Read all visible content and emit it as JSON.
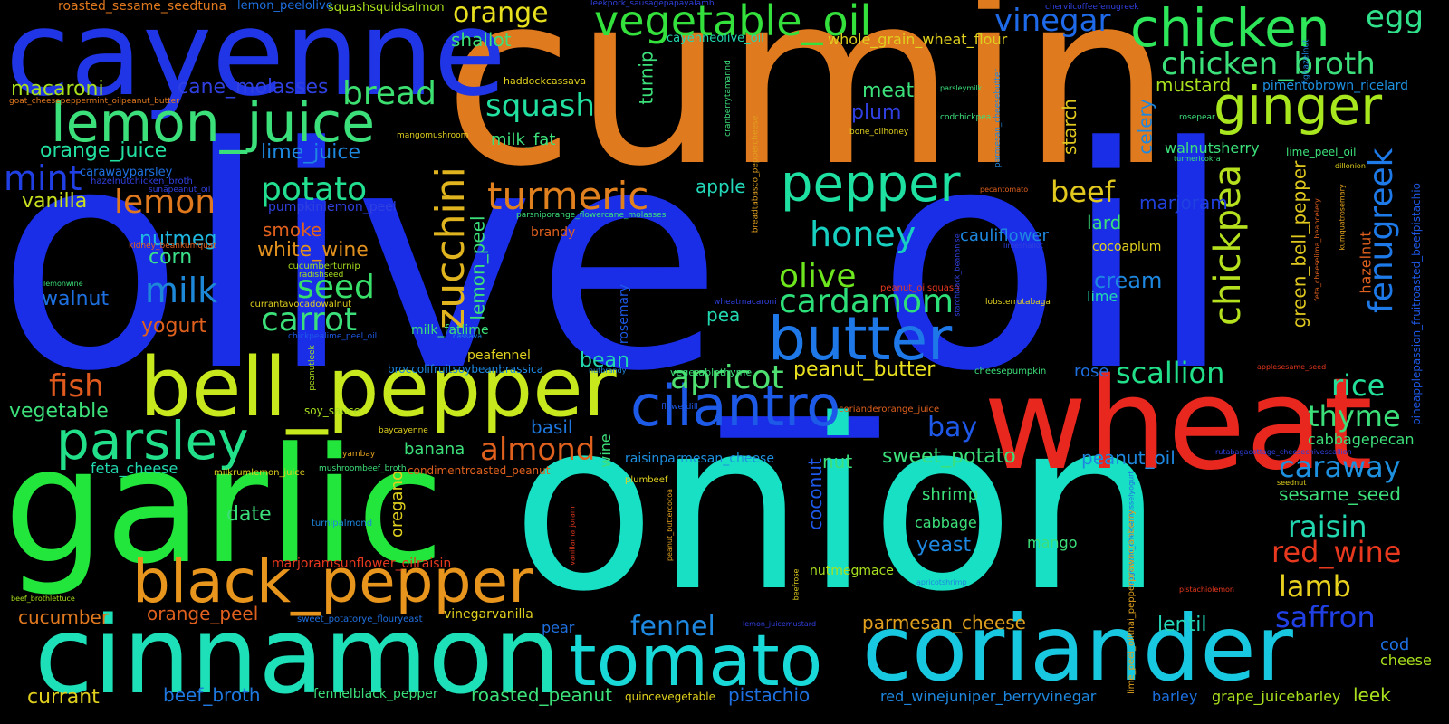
{
  "words": [
    {
      "id": "olive_oil",
      "text": "olive_oil",
      "color": "#1a2ee8"
    },
    {
      "id": "cumin",
      "text": "cumin",
      "color": "#e07a1e"
    },
    {
      "id": "onion",
      "text": "onion",
      "color": "#18e0c4"
    },
    {
      "id": "garlic",
      "text": "garlic",
      "color": "#22e63c"
    },
    {
      "id": "cayenne",
      "text": "cayenne",
      "color": "#2035e6"
    },
    {
      "id": "wheat",
      "text": "wheat",
      "color": "#e8281e"
    },
    {
      "id": "cinnamon",
      "text": "cinnamon",
      "color": "#1ee0b8"
    },
    {
      "id": "coriander",
      "text": "coriander",
      "color": "#18c8e0"
    },
    {
      "id": "tomato",
      "text": "tomato",
      "color": "#18d8d8"
    },
    {
      "id": "bell_pepper",
      "text": "bell_pepper",
      "color": "#c8e81e"
    },
    {
      "id": "lemon_juice",
      "text": "lemon_juice",
      "color": "#3ce07a"
    },
    {
      "id": "black_pepper",
      "text": "black_pepper",
      "color": "#e8951e"
    },
    {
      "id": "parsley",
      "text": "parsley",
      "color": "#22e08a"
    },
    {
      "id": "butter",
      "text": "butter",
      "color": "#1e78e8"
    },
    {
      "id": "cilantro",
      "text": "cilantro",
      "color": "#1e5ae8"
    },
    {
      "id": "chicken",
      "text": "chicken",
      "color": "#2ee65a"
    },
    {
      "id": "ginger",
      "text": "ginger",
      "color": "#a8e61e"
    },
    {
      "id": "vegetable_oil",
      "text": "vegetable_oil",
      "color": "#34e03c"
    },
    {
      "id": "pepper",
      "text": "pepper",
      "color": "#1ee0a0"
    },
    {
      "id": "turmeric",
      "text": "turmeric",
      "color": "#e0801e"
    },
    {
      "id": "chicken_broth",
      "text": "chicken_broth",
      "color": "#3ce07a"
    },
    {
      "id": "vinegar",
      "text": "vinegar",
      "color": "#1e6ae8"
    },
    {
      "id": "egg",
      "text": "egg",
      "color": "#30e08a"
    },
    {
      "id": "zucchini",
      "text": "zucchini",
      "color": "#e0b41e"
    },
    {
      "id": "chickpea",
      "text": "chickpea",
      "color": "#b4e01e"
    },
    {
      "id": "fenugreek",
      "text": "fenugreek",
      "color": "#1e7ae8"
    },
    {
      "id": "cardamom",
      "text": "cardamom",
      "color": "#2ee07a"
    },
    {
      "id": "honey",
      "text": "honey",
      "color": "#18d0c0"
    },
    {
      "id": "olive",
      "text": "olive",
      "color": "#6ee61e"
    },
    {
      "id": "apricot",
      "text": "apricot",
      "color": "#4ee070"
    },
    {
      "id": "almond",
      "text": "almond",
      "color": "#e0601e"
    },
    {
      "id": "carrot",
      "text": "carrot",
      "color": "#3ce07a"
    },
    {
      "id": "potato",
      "text": "potato",
      "color": "#22e090"
    },
    {
      "id": "seed",
      "text": "seed",
      "color": "#38e06a"
    },
    {
      "id": "milk",
      "text": "milk",
      "color": "#1e88d8"
    },
    {
      "id": "lemon",
      "text": "lemon",
      "color": "#e0781e"
    },
    {
      "id": "mint",
      "text": "mint",
      "color": "#2040e6"
    },
    {
      "id": "bread",
      "text": "bread",
      "color": "#3ce070"
    },
    {
      "id": "squash",
      "text": "squash",
      "color": "#22e0a0"
    },
    {
      "id": "orange",
      "text": "orange",
      "color": "#e8e01e"
    },
    {
      "id": "beef",
      "text": "beef",
      "color": "#e0c81e"
    },
    {
      "id": "fish",
      "text": "fish",
      "color": "#e05a1e"
    },
    {
      "id": "scallion",
      "text": "scallion",
      "color": "#22e08a"
    },
    {
      "id": "rice",
      "text": "rice",
      "color": "#22e09a"
    },
    {
      "id": "thyme",
      "text": "thyme",
      "color": "#3ce07a"
    },
    {
      "id": "caraway",
      "text": "caraway",
      "color": "#1e90e0"
    },
    {
      "id": "raisin",
      "text": "raisin",
      "color": "#22d8b0"
    },
    {
      "id": "red_wine",
      "text": "red_wine",
      "color": "#e8381e"
    },
    {
      "id": "lamb",
      "text": "lamb",
      "color": "#e8d01e"
    },
    {
      "id": "saffron",
      "text": "saffron",
      "color": "#2040e6"
    },
    {
      "id": "fennel",
      "text": "fennel",
      "color": "#1e88e0"
    },
    {
      "id": "bay",
      "text": "bay",
      "color": "#1e58e8"
    },
    {
      "id": "peanut_butter",
      "text": "peanut_butter",
      "color": "#e8e01e"
    },
    {
      "id": "sweet_potato",
      "text": "sweet_potato",
      "color": "#3ce07a"
    },
    {
      "id": "parmesan_cheese",
      "text": "parmesan_cheese",
      "color": "#e0a01e"
    },
    {
      "id": "lentil",
      "text": "lentil",
      "color": "#22d8b8"
    },
    {
      "id": "macaroni",
      "text": "macaroni",
      "color": "#a8e01e"
    },
    {
      "id": "orange_juice",
      "text": "orange_juice",
      "color": "#22e0a0"
    },
    {
      "id": "cane_molasses",
      "text": "cane_molasses",
      "color": "#3040e0"
    },
    {
      "id": "lime_juice",
      "text": "lime_juice",
      "color": "#1e88e0"
    },
    {
      "id": "shallot",
      "text": "shallot",
      "color": "#3ce07a"
    },
    {
      "id": "vanilla",
      "text": "vanilla",
      "color": "#c8e01e"
    },
    {
      "id": "nutmeg",
      "text": "nutmeg",
      "color": "#1eb8e0"
    },
    {
      "id": "corn",
      "text": "corn",
      "color": "#3ce08a"
    },
    {
      "id": "walnut",
      "text": "walnut",
      "color": "#1e70e0"
    },
    {
      "id": "yogurt",
      "text": "yogurt",
      "color": "#e0601e"
    },
    {
      "id": "smoke",
      "text": "smoke",
      "color": "#e0601e"
    },
    {
      "id": "white_wine",
      "text": "white_wine",
      "color": "#e0901e"
    },
    {
      "id": "vegetable",
      "text": "vegetable",
      "color": "#3ce07a"
    },
    {
      "id": "feta_cheese",
      "text": "feta_cheese",
      "color": "#22d8b0"
    },
    {
      "id": "date",
      "text": "date",
      "color": "#3ce07a"
    },
    {
      "id": "cucumber",
      "text": "cucumber",
      "color": "#e0781e"
    },
    {
      "id": "orange_peel",
      "text": "orange_peel",
      "color": "#e0601e"
    },
    {
      "id": "currant",
      "text": "currant",
      "color": "#e0d01e"
    },
    {
      "id": "beef_broth",
      "text": "beef_broth",
      "color": "#1e78e0"
    },
    {
      "id": "roasted_peanut",
      "text": "roasted_peanut",
      "color": "#3ce07a"
    },
    {
      "id": "pistachio",
      "text": "pistachio",
      "color": "#1e70e0"
    },
    {
      "id": "meat",
      "text": "meat",
      "color": "#3ce07a"
    },
    {
      "id": "plum",
      "text": "plum",
      "color": "#3040e0"
    },
    {
      "id": "apple",
      "text": "apple",
      "color": "#22d8b8"
    },
    {
      "id": "cauliflower",
      "text": "cauliflower",
      "color": "#1e88e0"
    },
    {
      "id": "marjoram",
      "text": "marjoram",
      "color": "#2040e0"
    },
    {
      "id": "lard",
      "text": "lard",
      "color": "#3ce07a"
    },
    {
      "id": "cream",
      "text": "cream",
      "color": "#1e88e0"
    },
    {
      "id": "lime",
      "text": "lime",
      "color": "#22d8b0"
    },
    {
      "id": "cocoaplum",
      "text": "cocoaplum",
      "color": "#e0d01e"
    },
    {
      "id": "mustard",
      "text": "mustard",
      "color": "#a8e01e"
    },
    {
      "id": "pimentobrown_ricelard",
      "text": "pimentobrown_ricelard",
      "color": "#1e90e0"
    },
    {
      "id": "walnutsherry",
      "text": "walnutsherry",
      "color": "#3ce07a"
    },
    {
      "id": "starch",
      "text": "starch",
      "color": "#e0c81e"
    },
    {
      "id": "celery",
      "text": "celery",
      "color": "#1e88e0"
    },
    {
      "id": "green_bell_pepper",
      "text": "green_bell_pepper",
      "color": "#e0c81e"
    },
    {
      "id": "hazelnut",
      "text": "hazelnut",
      "color": "#e0601e"
    },
    {
      "id": "lime_peel_oil",
      "text": "lime_peel_oil",
      "color": "#3ce07a"
    },
    {
      "id": "turnip",
      "text": "turnip",
      "color": "#3ce07a"
    },
    {
      "id": "milk_fat",
      "text": "milk_fat",
      "color": "#3ce07a"
    },
    {
      "id": "lemon_peel",
      "text": "lemon_peel",
      "color": "#3ce07a"
    },
    {
      "id": "whole_grain_wheat_flour",
      "text": "whole_grain_wheat_flour",
      "color": "#e0d01e"
    },
    {
      "id": "cayenneolive_oil",
      "text": "cayenneolive_oil",
      "color": "#22d8b0"
    },
    {
      "id": "brandy",
      "text": "brandy",
      "color": "#e0601e"
    },
    {
      "id": "pea",
      "text": "pea",
      "color": "#22d8b0"
    },
    {
      "id": "milk_fatlime",
      "text": "milk_fatlime",
      "color": "#3ce07a"
    },
    {
      "id": "peafennel",
      "text": "peafennel",
      "color": "#e0d01e"
    },
    {
      "id": "bean",
      "text": "bean",
      "color": "#22d8b0"
    },
    {
      "id": "basil",
      "text": "basil",
      "color": "#1e78e0"
    },
    {
      "id": "banana",
      "text": "banana",
      "color": "#3ce07a"
    },
    {
      "id": "wine",
      "text": "wine",
      "color": "#3ce07a"
    },
    {
      "id": "nut",
      "text": "nut",
      "color": "#3ce07a"
    },
    {
      "id": "coconut",
      "text": "coconut",
      "color": "#1e58e8"
    },
    {
      "id": "oregano",
      "text": "oregano",
      "color": "#e0d01e"
    },
    {
      "id": "shrimp",
      "text": "shrimp",
      "color": "#3ce07a"
    },
    {
      "id": "cabbage",
      "text": "cabbage",
      "color": "#3ce07a"
    },
    {
      "id": "yeast",
      "text": "yeast",
      "color": "#1e88e0"
    },
    {
      "id": "mango",
      "text": "mango",
      "color": "#3ce07a"
    },
    {
      "id": "peanut_oil",
      "text": "peanut_oil",
      "color": "#1e88e0"
    },
    {
      "id": "sesame_seed",
      "text": "sesame_seed",
      "color": "#3ce07a"
    },
    {
      "id": "cabbagepecan",
      "text": "cabbagepecan",
      "color": "#3ce07a"
    },
    {
      "id": "rose",
      "text": "rose",
      "color": "#1e70e0"
    },
    {
      "id": "raisinparmesan_cheese",
      "text": "raisinparmesan_cheese",
      "color": "#1e90e0"
    },
    {
      "id": "rosemary",
      "text": "rosemary",
      "color": "#1e58e8"
    },
    {
      "id": "cod",
      "text": "cod",
      "color": "#1e70e0"
    },
    {
      "id": "cheese",
      "text": "cheese",
      "color": "#a8e01e"
    },
    {
      "id": "leek",
      "text": "leek",
      "color": "#a8e01e"
    },
    {
      "id": "barley",
      "text": "barley",
      "color": "#1e70e0"
    },
    {
      "id": "grape_juicebarley",
      "text": "grape_juicebarley",
      "color": "#a8e01e"
    },
    {
      "id": "red_winejuniper_berryvinegar",
      "text": "red_winejuniper_berryvinegar",
      "color": "#1e88e0"
    },
    {
      "id": "pear",
      "text": "pear",
      "color": "#1e70e0"
    },
    {
      "id": "vinegarvanilla",
      "text": "vinegarvanilla",
      "color": "#e0d01e"
    },
    {
      "id": "fennelblack_pepper",
      "text": "fennelblack_pepper",
      "color": "#3ce07a"
    },
    {
      "id": "quincevegetable",
      "text": "quincevegetable",
      "color": "#e0d01e"
    },
    {
      "id": "nutmegmace",
      "text": "nutmegmace",
      "color": "#a8e01e"
    },
    {
      "id": "soy_sauce",
      "text": "soy_sauce",
      "color": "#a8e01e"
    },
    {
      "id": "roasted_sesame_seedtuna",
      "text": "roasted_sesame_seedtuna",
      "color": "#e0781e"
    },
    {
      "id": "lemon_peelolive",
      "text": "lemon_peelolive",
      "color": "#1e70e0"
    },
    {
      "id": "squashsquidsalmon",
      "text": "squashsquidsalmon",
      "color": "#a8e01e"
    },
    {
      "id": "goat_cheesepeppermint_oilpeanut_butter",
      "text": "goat_cheesepeppermint_oilpeanut_butter",
      "color": "#e0781e"
    },
    {
      "id": "carawayparsley",
      "text": "carawayparsley",
      "color": "#1e70e0"
    },
    {
      "id": "hazelnutchicken_broth",
      "text": "hazelnutchicken_broth",
      "color": "#3040e0"
    },
    {
      "id": "sunapeanut_oil",
      "text": "sunapeanut_oil",
      "color": "#3040e0"
    },
    {
      "id": "kidney_beankumquat",
      "text": "kidney_beankumquat",
      "color": "#e0601e"
    },
    {
      "id": "lemonwine",
      "text": "lemonwine",
      "color": "#3ce07a"
    },
    {
      "id": "pumpkinlemon_peel",
      "text": "pumpkinlemon_peel",
      "color": "#3040e0"
    },
    {
      "id": "cucumberturnip",
      "text": "cucumberturnip",
      "color": "#a8e01e"
    },
    {
      "id": "radishseed",
      "text": "radishseed",
      "color": "#a8e01e"
    },
    {
      "id": "currantavocadowalnut",
      "text": "currantavocadowalnut",
      "color": "#e0d01e"
    },
    {
      "id": "chickpealime_peel_oil",
      "text": "chickpealime_peel_oil",
      "color": "#1e58e8"
    },
    {
      "id": "broccolifruitsoybeanbrassica",
      "text": "broccolifruitsoybeanbrassica",
      "color": "#1e88e0"
    },
    {
      "id": "peanutleek",
      "text": "peanutleek",
      "color": "#a8e01e"
    },
    {
      "id": "marjoramsunflower_oilraisin",
      "text": "marjoramsunflower_oilraisin",
      "color": "#e8381e"
    },
    {
      "id": "milkrumlemon_juice",
      "text": "milkrumlemon_juice",
      "color": "#e0d01e"
    },
    {
      "id": "mushroombeef_broth",
      "text": "mushroombeef_broth",
      "color": "#3ce07a"
    },
    {
      "id": "condimentroasted_peanut",
      "text": "condimentroasted_peanut",
      "color": "#e0601e"
    },
    {
      "id": "turnipalmond",
      "text": "turnipalmond",
      "color": "#1e88e0"
    },
    {
      "id": "beef_brothlettuce",
      "text": "beef_brothlettuce",
      "color": "#a8e01e"
    },
    {
      "id": "sweet_potatorye_flouryeast",
      "text": "sweet_potatorye_flouryeast",
      "color": "#1e70e0"
    },
    {
      "id": "haddockcassava",
      "text": "haddockcassava",
      "color": "#e0d01e"
    },
    {
      "id": "leekpork_sausagepapayalamb",
      "text": "leekpork_sausagepapayalamb",
      "color": "#3040e0"
    },
    {
      "id": "chervilcoffeefenugreek",
      "text": "chervilcoffeefenugreek",
      "color": "#3040e0"
    },
    {
      "id": "cranberrytamarind",
      "text": "cranberrytamarind",
      "color": "#3ce07a"
    },
    {
      "id": "breadtabasco_peppercheese",
      "text": "breadtabasco_peppercheese",
      "color": "#e0a01e"
    },
    {
      "id": "codchickpea",
      "text": "codchickpea",
      "color": "#3ce07a"
    },
    {
      "id": "bone_oilhoney",
      "text": "bone_oilhoney",
      "color": "#e0d01e"
    },
    {
      "id": "parsleymilk",
      "text": "parsleymilk",
      "color": "#3ce07a"
    },
    {
      "id": "mangomushroom",
      "text": "mangomushroom",
      "color": "#e0d01e"
    },
    {
      "id": "parmesan_cheesebutter",
      "text": "parmesan_cheesebutter",
      "color": "#1e88e0"
    },
    {
      "id": "rosepear",
      "text": "rosepear",
      "color": "#3ce07a"
    },
    {
      "id": "fighazelnut",
      "text": "fighazelnut",
      "color": "#1e88e0"
    },
    {
      "id": "turmericokra",
      "text": "turmericokra",
      "color": "#3ce07a"
    },
    {
      "id": "dillonion",
      "text": "dillonion",
      "color": "#e0d01e"
    },
    {
      "id": "pecantomato",
      "text": "pecantomato",
      "color": "#e0601e"
    },
    {
      "id": "limeshallot",
      "text": "limeshallot",
      "color": "#3040e0"
    },
    {
      "id": "kumquatrosemary",
      "text": "kumquatrosemary",
      "color": "#e0a01e"
    },
    {
      "id": "feta_cheeselima_beancelery",
      "text": "feta_cheeselima_beancelery",
      "color": "#e0601e"
    },
    {
      "id": "pineapplepassion_fruitroasted_beefpistachio",
      "text": "pineapplepassion_fruitroasted_beefpistachio",
      "color": "#1e58e8"
    },
    {
      "id": "peanut_oilsquash",
      "text": "peanut_oilsquash",
      "color": "#e8381e"
    },
    {
      "id": "starchblack_beananise",
      "text": "starchblack_beananise",
      "color": "#3040e0"
    },
    {
      "id": "wheatmacaroni",
      "text": "wheatmacaroni",
      "color": "#3040e0"
    },
    {
      "id": "lobsterrutabaga",
      "text": "lobsterrutabaga",
      "color": "#e0d01e"
    },
    {
      "id": "parsniporange_flowercane_molasses",
      "text": "parsniporange_flowercane_molasses",
      "color": "#3ce07a"
    },
    {
      "id": "cassava",
      "text": "cassava",
      "color": "#1e88e0"
    },
    {
      "id": "yambay",
      "text": "yambay",
      "color": "#e0a01e"
    },
    {
      "id": "baycayenne",
      "text": "baycayenne",
      "color": "#e0d01e"
    },
    {
      "id": "nutbrandy",
      "text": "nutbrandy",
      "color": "#1e88e0"
    },
    {
      "id": "flowerdill",
      "text": "flowerdill",
      "color": "#1e58e8"
    },
    {
      "id": "vegetablethyme",
      "text": "vegetablethyme",
      "color": "#3ce07a"
    },
    {
      "id": "plumbeef",
      "text": "plumbeef",
      "color": "#e0d01e"
    },
    {
      "id": "peanut_buttercocoa",
      "text": "peanut_buttercocoa",
      "color": "#e0a01e"
    },
    {
      "id": "beefrose",
      "text": "beefrose",
      "color": "#e0d01e"
    },
    {
      "id": "vanillamarjoram",
      "text": "vanillamarjoram",
      "color": "#e8381e"
    },
    {
      "id": "corianderorange_juice",
      "text": "corianderorange_juice",
      "color": "#e0601e"
    },
    {
      "id": "apricotshrimp",
      "text": "apricotshrimp",
      "color": "#1e88e0"
    },
    {
      "id": "lemon_juicemustard",
      "text": "lemon_juicemustard",
      "color": "#3040e0"
    },
    {
      "id": "cheesepumpkin",
      "text": "cheesepumpkin",
      "color": "#3ce07a"
    },
    {
      "id": "applesesame_seed",
      "text": "applesesame_seed",
      "color": "#e8381e"
    },
    {
      "id": "rutabagacottage_cheesechivescallion",
      "text": "rutabagacottage_cheesechivescallion",
      "color": "#3040e0"
    },
    {
      "id": "seednut",
      "text": "seednut",
      "color": "#e0d01e"
    },
    {
      "id": "eggcream_cheesemusselyogurt",
      "text": "eggcream_cheesemusselyogurt",
      "color": "#1e70e0"
    },
    {
      "id": "lime_peel_oilthai_pepperprawncranberry",
      "text": "lime_peel_oilthai_pepperprawncranberry",
      "color": "#e0a01e"
    },
    {
      "id": "pistachiolemon",
      "text": "pistachiolemon",
      "color": "#e8381e"
    },
    {
      "id": "lemon_small",
      "text": "lemon",
      "color": "#e0601e"
    }
  ]
}
